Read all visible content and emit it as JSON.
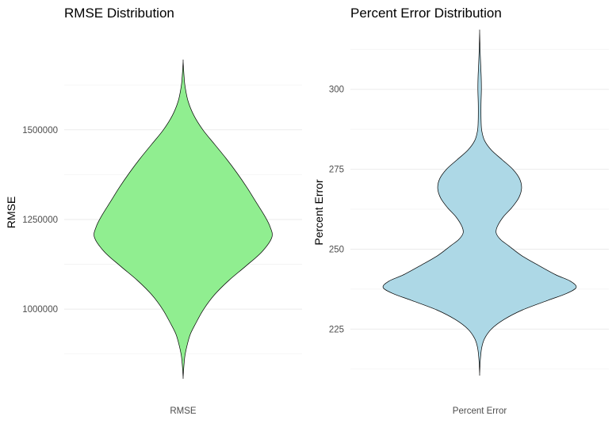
{
  "chart_data": [
    {
      "type": "violin",
      "title": "RMSE Distribution",
      "xlabel": "",
      "ylabel": "RMSE",
      "categories": [
        "RMSE"
      ],
      "ylim": [
        775000,
        1800000
      ],
      "yticks": [
        1000000,
        1250000,
        1500000
      ],
      "ytick_labels": [
        "1000000",
        "1250000",
        "1500000"
      ],
      "fill_color": "#90EE90",
      "grid": true,
      "range": [
        810000,
        1690000
      ],
      "density_profile": [
        {
          "y": 810000,
          "half_width": 0.0
        },
        {
          "y": 840000,
          "half_width": 0.008
        },
        {
          "y": 870000,
          "half_width": 0.02
        },
        {
          "y": 900000,
          "half_width": 0.045
        },
        {
          "y": 930000,
          "half_width": 0.08
        },
        {
          "y": 960000,
          "half_width": 0.14
        },
        {
          "y": 1000000,
          "half_width": 0.23
        },
        {
          "y": 1040000,
          "half_width": 0.35
        },
        {
          "y": 1080000,
          "half_width": 0.51
        },
        {
          "y": 1120000,
          "half_width": 0.7
        },
        {
          "y": 1160000,
          "half_width": 0.88
        },
        {
          "y": 1200000,
          "half_width": 0.99
        },
        {
          "y": 1230000,
          "half_width": 0.97
        },
        {
          "y": 1260000,
          "half_width": 0.91
        },
        {
          "y": 1300000,
          "half_width": 0.81
        },
        {
          "y": 1340000,
          "half_width": 0.71
        },
        {
          "y": 1380000,
          "half_width": 0.6
        },
        {
          "y": 1420000,
          "half_width": 0.48
        },
        {
          "y": 1460000,
          "half_width": 0.35
        },
        {
          "y": 1500000,
          "half_width": 0.22
        },
        {
          "y": 1540000,
          "half_width": 0.12
        },
        {
          "y": 1580000,
          "half_width": 0.055
        },
        {
          "y": 1620000,
          "half_width": 0.022
        },
        {
          "y": 1650000,
          "half_width": 0.01
        },
        {
          "y": 1690000,
          "half_width": 0.0
        }
      ]
    },
    {
      "type": "violin",
      "title": "Percent Error Distribution",
      "xlabel": "",
      "ylabel": "Percent Error",
      "categories": [
        "Percent Error"
      ],
      "ylim": [
        206,
        321
      ],
      "yticks": [
        225,
        250,
        275,
        300
      ],
      "ytick_labels": [
        "225",
        "250",
        "275",
        "300"
      ],
      "fill_color": "#ADD8E6",
      "grid": true,
      "range": [
        211,
        318
      ],
      "density_profile": [
        {
          "y": 211,
          "half_width": 0.0
        },
        {
          "y": 215,
          "half_width": 0.006
        },
        {
          "y": 219,
          "half_width": 0.02
        },
        {
          "y": 222,
          "half_width": 0.05
        },
        {
          "y": 225,
          "half_width": 0.12
        },
        {
          "y": 228,
          "half_width": 0.25
        },
        {
          "y": 231,
          "half_width": 0.44
        },
        {
          "y": 234,
          "half_width": 0.7
        },
        {
          "y": 236,
          "half_width": 0.88
        },
        {
          "y": 238,
          "half_width": 0.99
        },
        {
          "y": 240,
          "half_width": 0.93
        },
        {
          "y": 242,
          "half_width": 0.78
        },
        {
          "y": 245,
          "half_width": 0.6
        },
        {
          "y": 248,
          "half_width": 0.43
        },
        {
          "y": 251,
          "half_width": 0.3
        },
        {
          "y": 253,
          "half_width": 0.215
        },
        {
          "y": 255,
          "half_width": 0.17
        },
        {
          "y": 257,
          "half_width": 0.18
        },
        {
          "y": 260,
          "half_width": 0.24
        },
        {
          "y": 263,
          "half_width": 0.33
        },
        {
          "y": 266,
          "half_width": 0.4
        },
        {
          "y": 269,
          "half_width": 0.43
        },
        {
          "y": 272,
          "half_width": 0.41
        },
        {
          "y": 275,
          "half_width": 0.34
        },
        {
          "y": 278,
          "half_width": 0.23
        },
        {
          "y": 281,
          "half_width": 0.12
        },
        {
          "y": 284,
          "half_width": 0.05
        },
        {
          "y": 287,
          "half_width": 0.022
        },
        {
          "y": 290,
          "half_width": 0.015
        },
        {
          "y": 295,
          "half_width": 0.014
        },
        {
          "y": 300,
          "half_width": 0.018
        },
        {
          "y": 304,
          "half_width": 0.016
        },
        {
          "y": 308,
          "half_width": 0.01
        },
        {
          "y": 313,
          "half_width": 0.004
        },
        {
          "y": 318,
          "half_width": 0.0
        }
      ]
    }
  ]
}
